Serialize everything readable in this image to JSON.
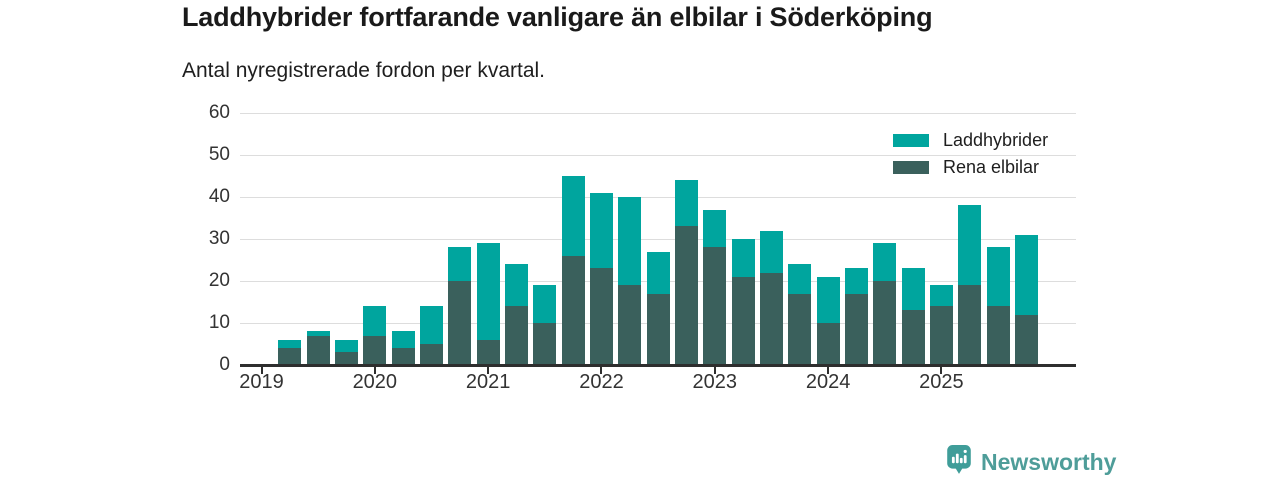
{
  "header": {
    "title": "Laddhybrider fortfarande vanligare än elbilar i Söderköping",
    "subtitle": "Antal nyregistrerade fordon per kvartal."
  },
  "legend": {
    "items": [
      {
        "label": "Laddhybrider",
        "color": "#00a59e"
      },
      {
        "label": "Rena elbilar",
        "color": "#3a605c"
      }
    ]
  },
  "footer": {
    "brand": "Newsworthy",
    "brand_color": "#4e9d99",
    "logo_icon": "bar-chart-pin-icon"
  },
  "colors": {
    "laddhybrider": "#00a59e",
    "rena_elbilar": "#3a605c",
    "gridline": "#dddddd",
    "axis": "#2e2e2e",
    "text": "#333333"
  },
  "chart_data": {
    "type": "bar",
    "stacked": true,
    "title": "Laddhybrider fortfarande vanligare än elbilar i Söderköping",
    "subtitle": "Antal nyregistrerade fordon per kvartal.",
    "xlabel": "",
    "ylabel": "",
    "ylim": [
      0,
      60
    ],
    "y_ticks": [
      0,
      10,
      20,
      30,
      40,
      50,
      60
    ],
    "grid": "horizontal",
    "legend_position": "top-right",
    "categories": [
      "2019 Q1",
      "2019 Q2",
      "2019 Q3",
      "2019 Q4",
      "2020 Q1",
      "2020 Q2",
      "2020 Q3",
      "2020 Q4",
      "2021 Q1",
      "2021 Q2",
      "2021 Q3",
      "2021 Q4",
      "2022 Q1",
      "2022 Q2",
      "2022 Q3",
      "2022 Q4",
      "2023 Q1",
      "2023 Q2",
      "2023 Q3",
      "2023 Q4",
      "2024 Q1",
      "2024 Q2",
      "2024 Q3",
      "2024 Q4",
      "2025 Q1",
      "2025 Q2",
      "2025 Q3",
      "2025 Q4"
    ],
    "x_tick_labels": [
      "2019",
      "2020",
      "2021",
      "2022",
      "2023",
      "2024",
      "2025"
    ],
    "series": [
      {
        "name": "Rena elbilar",
        "color": "#3a605c",
        "values": [
          0,
          4,
          7,
          3,
          7,
          4,
          5,
          20,
          6,
          14,
          10,
          26,
          23,
          19,
          17,
          33,
          28,
          21,
          22,
          17,
          10,
          17,
          20,
          13,
          14,
          19,
          14,
          12
        ]
      },
      {
        "name": "Laddhybrider",
        "color": "#00a59e",
        "values": [
          0,
          2,
          1,
          3,
          7,
          4,
          9,
          8,
          23,
          10,
          9,
          19,
          18,
          21,
          10,
          11,
          9,
          9,
          10,
          7,
          11,
          6,
          9,
          10,
          5,
          19,
          14,
          19
        ]
      }
    ]
  }
}
